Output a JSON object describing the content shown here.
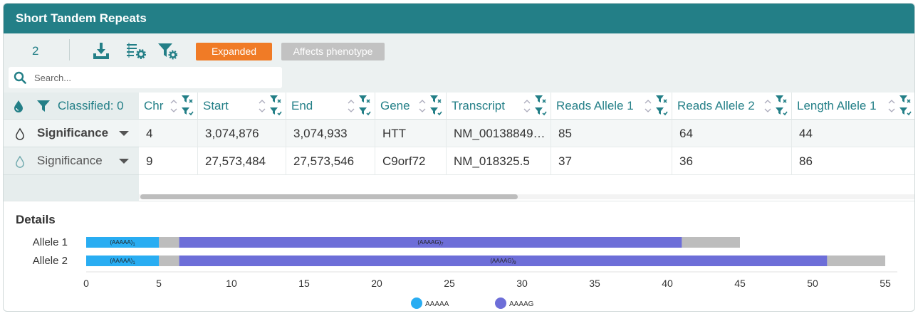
{
  "header": {
    "title": "Short Tandem Repeats"
  },
  "toolbar": {
    "count": "2",
    "icons": [
      "download-icon",
      "column-settings-icon",
      "filter-settings-icon"
    ],
    "tags": {
      "expanded": "Expanded",
      "affects_phenotype": "Affects phenotype"
    },
    "tag_colors": {
      "expanded": "#f07b26",
      "affects_phenotype": "#c2c2c2"
    }
  },
  "search": {
    "placeholder": "Search..."
  },
  "left_column": {
    "header": "Classified: 0",
    "rows": [
      {
        "label": "Significance"
      },
      {
        "label": "Significance"
      }
    ]
  },
  "table": {
    "columns": [
      "Chr",
      "Start",
      "End",
      "Gene",
      "Transcript",
      "Reads Allele 1",
      "Reads Allele 2",
      "Length Allele 1"
    ],
    "rows": [
      [
        "4",
        "3,074,876",
        "3,074,933",
        "HTT",
        "NM_00138849…",
        "85",
        "64",
        "44"
      ],
      [
        "9",
        "27,573,484",
        "27,573,546",
        "C9orf72",
        "NM_018325.5",
        "37",
        "36",
        "86"
      ]
    ]
  },
  "details": {
    "title": "Details",
    "chart_data": {
      "type": "bar",
      "orientation": "horizontal-stacked",
      "categories": [
        "Allele 1",
        "Allele 2"
      ],
      "total_length": [
        45,
        55
      ],
      "segments": [
        [
          {
            "motif": "AAAAA",
            "label": "(AAAAA)",
            "sub": "1",
            "start": 0,
            "end": 5
          },
          {
            "motif": "gap",
            "start": 5,
            "end": 6.4
          },
          {
            "motif": "AAAAG",
            "label": "(AAAAG)",
            "sub": "7",
            "start": 6.4,
            "end": 41
          },
          {
            "motif": "gap",
            "start": 41,
            "end": 45
          }
        ],
        [
          {
            "motif": "AAAAA",
            "label": "(AAAAA)",
            "sub": "1",
            "start": 0,
            "end": 5
          },
          {
            "motif": "gap",
            "start": 5,
            "end": 6.4
          },
          {
            "motif": "AAAAG",
            "label": "(AAAAG)",
            "sub": "9",
            "start": 6.4,
            "end": 51
          },
          {
            "motif": "gap",
            "start": 51,
            "end": 55
          }
        ]
      ],
      "x_ticks": [
        0,
        5,
        10,
        15,
        20,
        25,
        30,
        35,
        40,
        45,
        50,
        55
      ],
      "xlim": [
        0,
        55
      ],
      "legend": [
        {
          "name": "AAAAA",
          "color": "#29adf2"
        },
        {
          "name": "AAAAG",
          "color": "#6d6ed8"
        }
      ],
      "legend_position": "bottom",
      "colors": {
        "AAAAA": "#29adf2",
        "AAAAG": "#6d6ed8",
        "gap": "#bdbdbd"
      }
    }
  },
  "colors": {
    "accent": "#237f87",
    "header_bg": "#237f87"
  }
}
